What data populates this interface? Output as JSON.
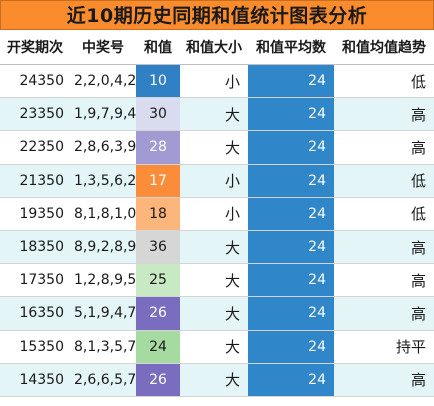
{
  "title": "近10期历史同期和值统计图表分析",
  "headers": [
    "开奖期次",
    "中奖号",
    "和值",
    "和值大小",
    "和值平均数",
    "和值均值趋势"
  ],
  "rows": [
    {
      "issue": "24350",
      "numbers": "2,2,0,4,2",
      "sum": "10",
      "size": "小",
      "avg": "24",
      "trend": "低",
      "sum_bg": "#2f80c4",
      "sum_fg": "#ffffff"
    },
    {
      "issue": "23350",
      "numbers": "1,9,7,9,4",
      "sum": "30",
      "size": "大",
      "avg": "24",
      "trend": "高",
      "sum_bg": "#d9dbee",
      "sum_fg": "#1a1a1a"
    },
    {
      "issue": "22350",
      "numbers": "2,8,6,3,9",
      "sum": "28",
      "size": "大",
      "avg": "24",
      "trend": "高",
      "sum_bg": "#a29ad2",
      "sum_fg": "#ffffff"
    },
    {
      "issue": "21350",
      "numbers": "1,3,5,6,2",
      "sum": "17",
      "size": "小",
      "avg": "24",
      "trend": "低",
      "sum_bg": "#fb8c3a",
      "sum_fg": "#ffffff"
    },
    {
      "issue": "19350",
      "numbers": "8,1,8,1,0",
      "sum": "18",
      "size": "小",
      "avg": "24",
      "trend": "低",
      "sum_bg": "#fcb57a",
      "sum_fg": "#1a1a1a"
    },
    {
      "issue": "18350",
      "numbers": "8,9,2,8,9",
      "sum": "36",
      "size": "大",
      "avg": "24",
      "trend": "高",
      "sum_bg": "#d6d6d6",
      "sum_fg": "#1a1a1a"
    },
    {
      "issue": "17350",
      "numbers": "1,2,8,9,5",
      "sum": "25",
      "size": "大",
      "avg": "24",
      "trend": "高",
      "sum_bg": "#c7e9c3",
      "sum_fg": "#1a1a1a"
    },
    {
      "issue": "16350",
      "numbers": "5,1,9,4,7",
      "sum": "26",
      "size": "大",
      "avg": "24",
      "trend": "高",
      "sum_bg": "#7a6cbe",
      "sum_fg": "#ffffff"
    },
    {
      "issue": "15350",
      "numbers": "8,1,3,5,7",
      "sum": "24",
      "size": "大",
      "avg": "24",
      "trend": "持平",
      "sum_bg": "#a5dba0",
      "sum_fg": "#1a1a1a"
    },
    {
      "issue": "14350",
      "numbers": "2,6,6,5,7",
      "sum": "26",
      "size": "大",
      "avg": "24",
      "trend": "高",
      "sum_bg": "#7a6cbe",
      "sum_fg": "#ffffff"
    }
  ]
}
